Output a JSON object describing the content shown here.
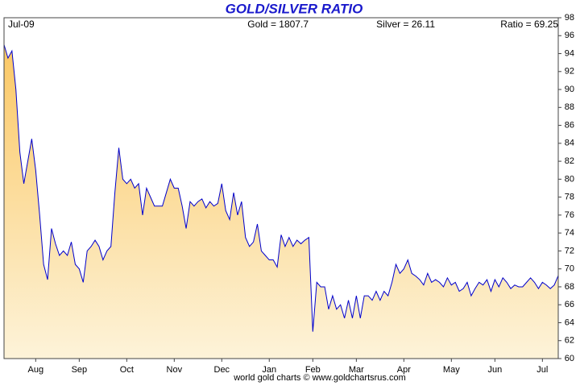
{
  "chart_data": {
    "type": "area",
    "title": "GOLD/SILVER RATIO",
    "header": [
      "Jul-09",
      "Gold = 1807.7",
      "Silver = 26.11",
      "Ratio = 69.25"
    ],
    "source": "world gold charts © www.goldchartsrus.com",
    "categories": [
      null,
      null,
      null,
      null,
      null,
      null,
      null,
      null,
      "Aug",
      null,
      null,
      null,
      null,
      null,
      null,
      null,
      null,
      null,
      null,
      "Sep",
      null,
      null,
      null,
      null,
      null,
      null,
      null,
      null,
      null,
      null,
      null,
      "Oct",
      null,
      null,
      null,
      null,
      null,
      null,
      null,
      null,
      null,
      null,
      null,
      "Nov",
      null,
      null,
      null,
      null,
      null,
      null,
      null,
      null,
      null,
      null,
      null,
      "Dec",
      null,
      null,
      null,
      null,
      null,
      null,
      null,
      null,
      null,
      null,
      null,
      "Jan",
      null,
      null,
      null,
      null,
      null,
      null,
      null,
      null,
      null,
      null,
      "Feb",
      null,
      null,
      null,
      null,
      null,
      null,
      null,
      null,
      null,
      null,
      "Mar",
      null,
      null,
      null,
      null,
      null,
      null,
      null,
      null,
      null,
      null,
      null,
      "Apr",
      null,
      null,
      null,
      null,
      null,
      null,
      null,
      null,
      null,
      null,
      null,
      "May",
      null,
      null,
      null,
      null,
      null,
      null,
      null,
      null,
      null,
      null,
      "Jun",
      null,
      null,
      null,
      null,
      null,
      null,
      null,
      null,
      null,
      null,
      null,
      "Jul",
      null,
      null,
      null,
      null
    ],
    "series": [
      {
        "name": "Ratio",
        "color": "#0000cc",
        "fill_top": "#fbc865",
        "fill_bottom": "#fdf3d9",
        "values": [
          95,
          93.5,
          94.3,
          90,
          83,
          79.5,
          82,
          84.5,
          81,
          76,
          70.5,
          68.8,
          74.5,
          72.8,
          71.5,
          72,
          71.5,
          73,
          70.5,
          70,
          68.5,
          72,
          72.5,
          73.2,
          72.5,
          71,
          72,
          72.5,
          78.5,
          83.5,
          80,
          79.5,
          80,
          79,
          79.5,
          76,
          79,
          78,
          77,
          77,
          77,
          78.5,
          80,
          79,
          79,
          77,
          74.5,
          77.5,
          77,
          77.5,
          77.8,
          76.8,
          77.5,
          77,
          77.3,
          79.5,
          76.5,
          75.5,
          78.5,
          76,
          77.5,
          73.5,
          72.5,
          73,
          75,
          72,
          71.5,
          71,
          71,
          70.2,
          73.8,
          72.5,
          73.5,
          72.5,
          73.2,
          72.8,
          73.2,
          73.5,
          63,
          68.5,
          68,
          68,
          65.5,
          67,
          65.5,
          66,
          64.5,
          66.5,
          64.5,
          67,
          64.5,
          67,
          67,
          66.5,
          67.5,
          66.5,
          67.5,
          67,
          68.5,
          70.5,
          69.5,
          70,
          71,
          69.5,
          69.2,
          68.8,
          68.2,
          69.5,
          68.5,
          68.8,
          68.5,
          68,
          69,
          68.2,
          68.5,
          67.5,
          67.8,
          68.5,
          67,
          67.8,
          68.5,
          68.2,
          68.8,
          67.5,
          68.8,
          68,
          69,
          68.5,
          67.8,
          68.2,
          68,
          68,
          68.5,
          69,
          68.5,
          67.8,
          68.5,
          68.2,
          67.8,
          68.2,
          69.25
        ]
      }
    ],
    "ylim": [
      60,
      98
    ],
    "yticks": [
      60,
      62,
      64,
      66,
      68,
      70,
      72,
      74,
      76,
      78,
      80,
      82,
      84,
      86,
      88,
      90,
      92,
      94,
      96,
      98
    ],
    "grid": false
  }
}
